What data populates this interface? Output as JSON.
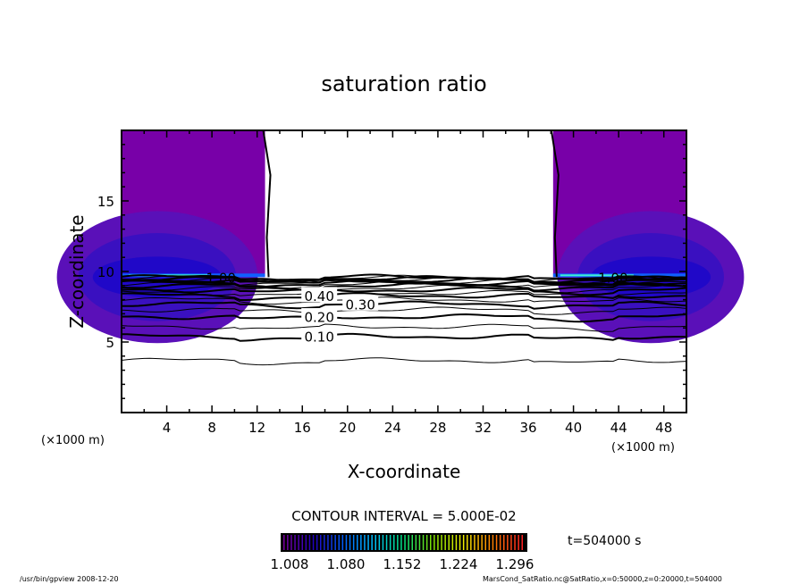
{
  "chart_data": {
    "type": "heatmap",
    "title": "saturation ratio",
    "xlabel": "X-coordinate",
    "ylabel": "Z-coordinate",
    "x_unit_label": "(×1000 m)",
    "xlim": [
      0,
      50
    ],
    "ylim": [
      0,
      20
    ],
    "xticks": [
      4,
      8,
      12,
      16,
      20,
      24,
      28,
      32,
      36,
      40,
      44,
      48
    ],
    "yticks": [
      5,
      10,
      15
    ],
    "contour_interval_label": "CONTOUR INTERVAL = 5.000E-02",
    "contour_levels": [
      0.05,
      0.1,
      0.15,
      0.2,
      0.25,
      0.3,
      0.35,
      0.4,
      0.45,
      0.5,
      0.55,
      0.6,
      0.65,
      0.7,
      0.75,
      0.8,
      0.85,
      0.9,
      0.95,
      1.0
    ],
    "contour_level_heights": [
      3.7,
      5.4,
      6.1,
      6.8,
      7.3,
      7.7,
      8.0,
      8.3,
      8.5,
      8.7,
      8.85,
      9.0,
      9.1,
      9.2,
      9.3,
      9.38,
      9.45,
      9.5,
      9.55,
      9.6
    ],
    "contour_labels": [
      {
        "text": "0.10",
        "x": 17.5,
        "z": 5.4
      },
      {
        "text": "0.20",
        "x": 17.5,
        "z": 6.8
      },
      {
        "text": "0.30",
        "x": 17.5,
        "z": 7.7
      },
      {
        "text": "0.40",
        "x": 17.5,
        "z": 8.3
      },
      {
        "text": "1.00",
        "x": 8.8,
        "z": 9.6
      },
      {
        "text": "1.00",
        "x": 43.5,
        "z": 9.6
      }
    ],
    "supersaturated_regions": [
      {
        "x_range": [
          0,
          12.7
        ],
        "z_range": [
          9.6,
          20
        ]
      },
      {
        "x_range": [
          38.2,
          50
        ],
        "z_range": [
          9.6,
          20
        ]
      }
    ],
    "colorbar": {
      "ticks": [
        "1.008",
        "1.080",
        "1.152",
        "1.224",
        "1.296"
      ],
      "range": [
        1.0,
        1.33
      ],
      "colors": [
        "#7a00a0",
        "#2000c0",
        "#0060ff",
        "#00c0ff",
        "#00e080",
        "#80e000",
        "#f0f000",
        "#ff8000",
        "#ff2020"
      ]
    },
    "time_label": "t=504000 s"
  },
  "footer": {
    "left": "/usr/bin/gpview  2008-12-20",
    "right": "MarsCond_SatRatio.nc@SatRatio,x=0:50000,z=0:20000,t=504000"
  }
}
